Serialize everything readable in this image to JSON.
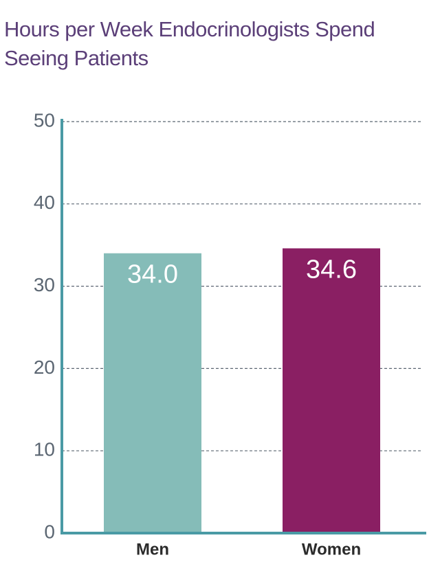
{
  "chart_data": {
    "type": "bar",
    "title": "Hours per Week Endocrinologists Spend Seeing Patients",
    "categories": [
      "Men",
      "Women"
    ],
    "values": [
      34.0,
      34.6
    ],
    "value_labels": [
      "34.0",
      "34.6"
    ],
    "colors": [
      "#85bcb8",
      "#8a1f63"
    ],
    "ylim": [
      0,
      50
    ],
    "yticks": [
      0,
      10,
      20,
      30,
      40,
      50
    ],
    "grid": true
  }
}
